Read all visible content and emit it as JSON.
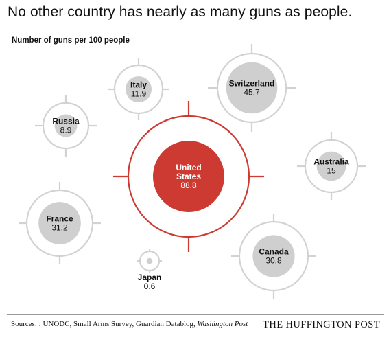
{
  "title": "No other country has nearly as many guns as people.",
  "subtitle": "Number of guns per 100 people",
  "footer": {
    "sources_prefix": "Sources: : UNODC, Small Arms Survey, Guardian Datablog,",
    "sources_italic": "Washington Post",
    "brand": "THE HUFFINGTON POST"
  },
  "colors": {
    "highlight": "#cc3a32",
    "ring": "#d2d2d2",
    "fill": "#cfcfcf",
    "text_on_highlight": "#ffffff",
    "text": "#111111"
  },
  "chart_data": {
    "type": "bubble",
    "value_label": "Number of guns per 100 people",
    "points": [
      {
        "country": "United States",
        "label_lines": [
          "United",
          "States"
        ],
        "value_text": "88.8",
        "value": 88.8,
        "highlight": true
      },
      {
        "country": "Switzerland",
        "label_lines": [
          "Switzerland"
        ],
        "value_text": "45.7",
        "value": 45.7,
        "highlight": false
      },
      {
        "country": "France",
        "label_lines": [
          "France"
        ],
        "value_text": "31.2",
        "value": 31.2,
        "highlight": false
      },
      {
        "country": "Canada",
        "label_lines": [
          "Canada"
        ],
        "value_text": "30.8",
        "value": 30.8,
        "highlight": false
      },
      {
        "country": "Australia",
        "label_lines": [
          "Australia"
        ],
        "value_text": "15",
        "value": 15,
        "highlight": false
      },
      {
        "country": "Italy",
        "label_lines": [
          "Italy"
        ],
        "value_text": "11.9",
        "value": 11.9,
        "highlight": false
      },
      {
        "country": "Russia",
        "label_lines": [
          "Russia"
        ],
        "value_text": "8.9",
        "value": 8.9,
        "highlight": false
      },
      {
        "country": "Japan",
        "label_lines": [
          "Japan"
        ],
        "value_text": "0.6",
        "value": 0.6,
        "highlight": false
      }
    ]
  }
}
